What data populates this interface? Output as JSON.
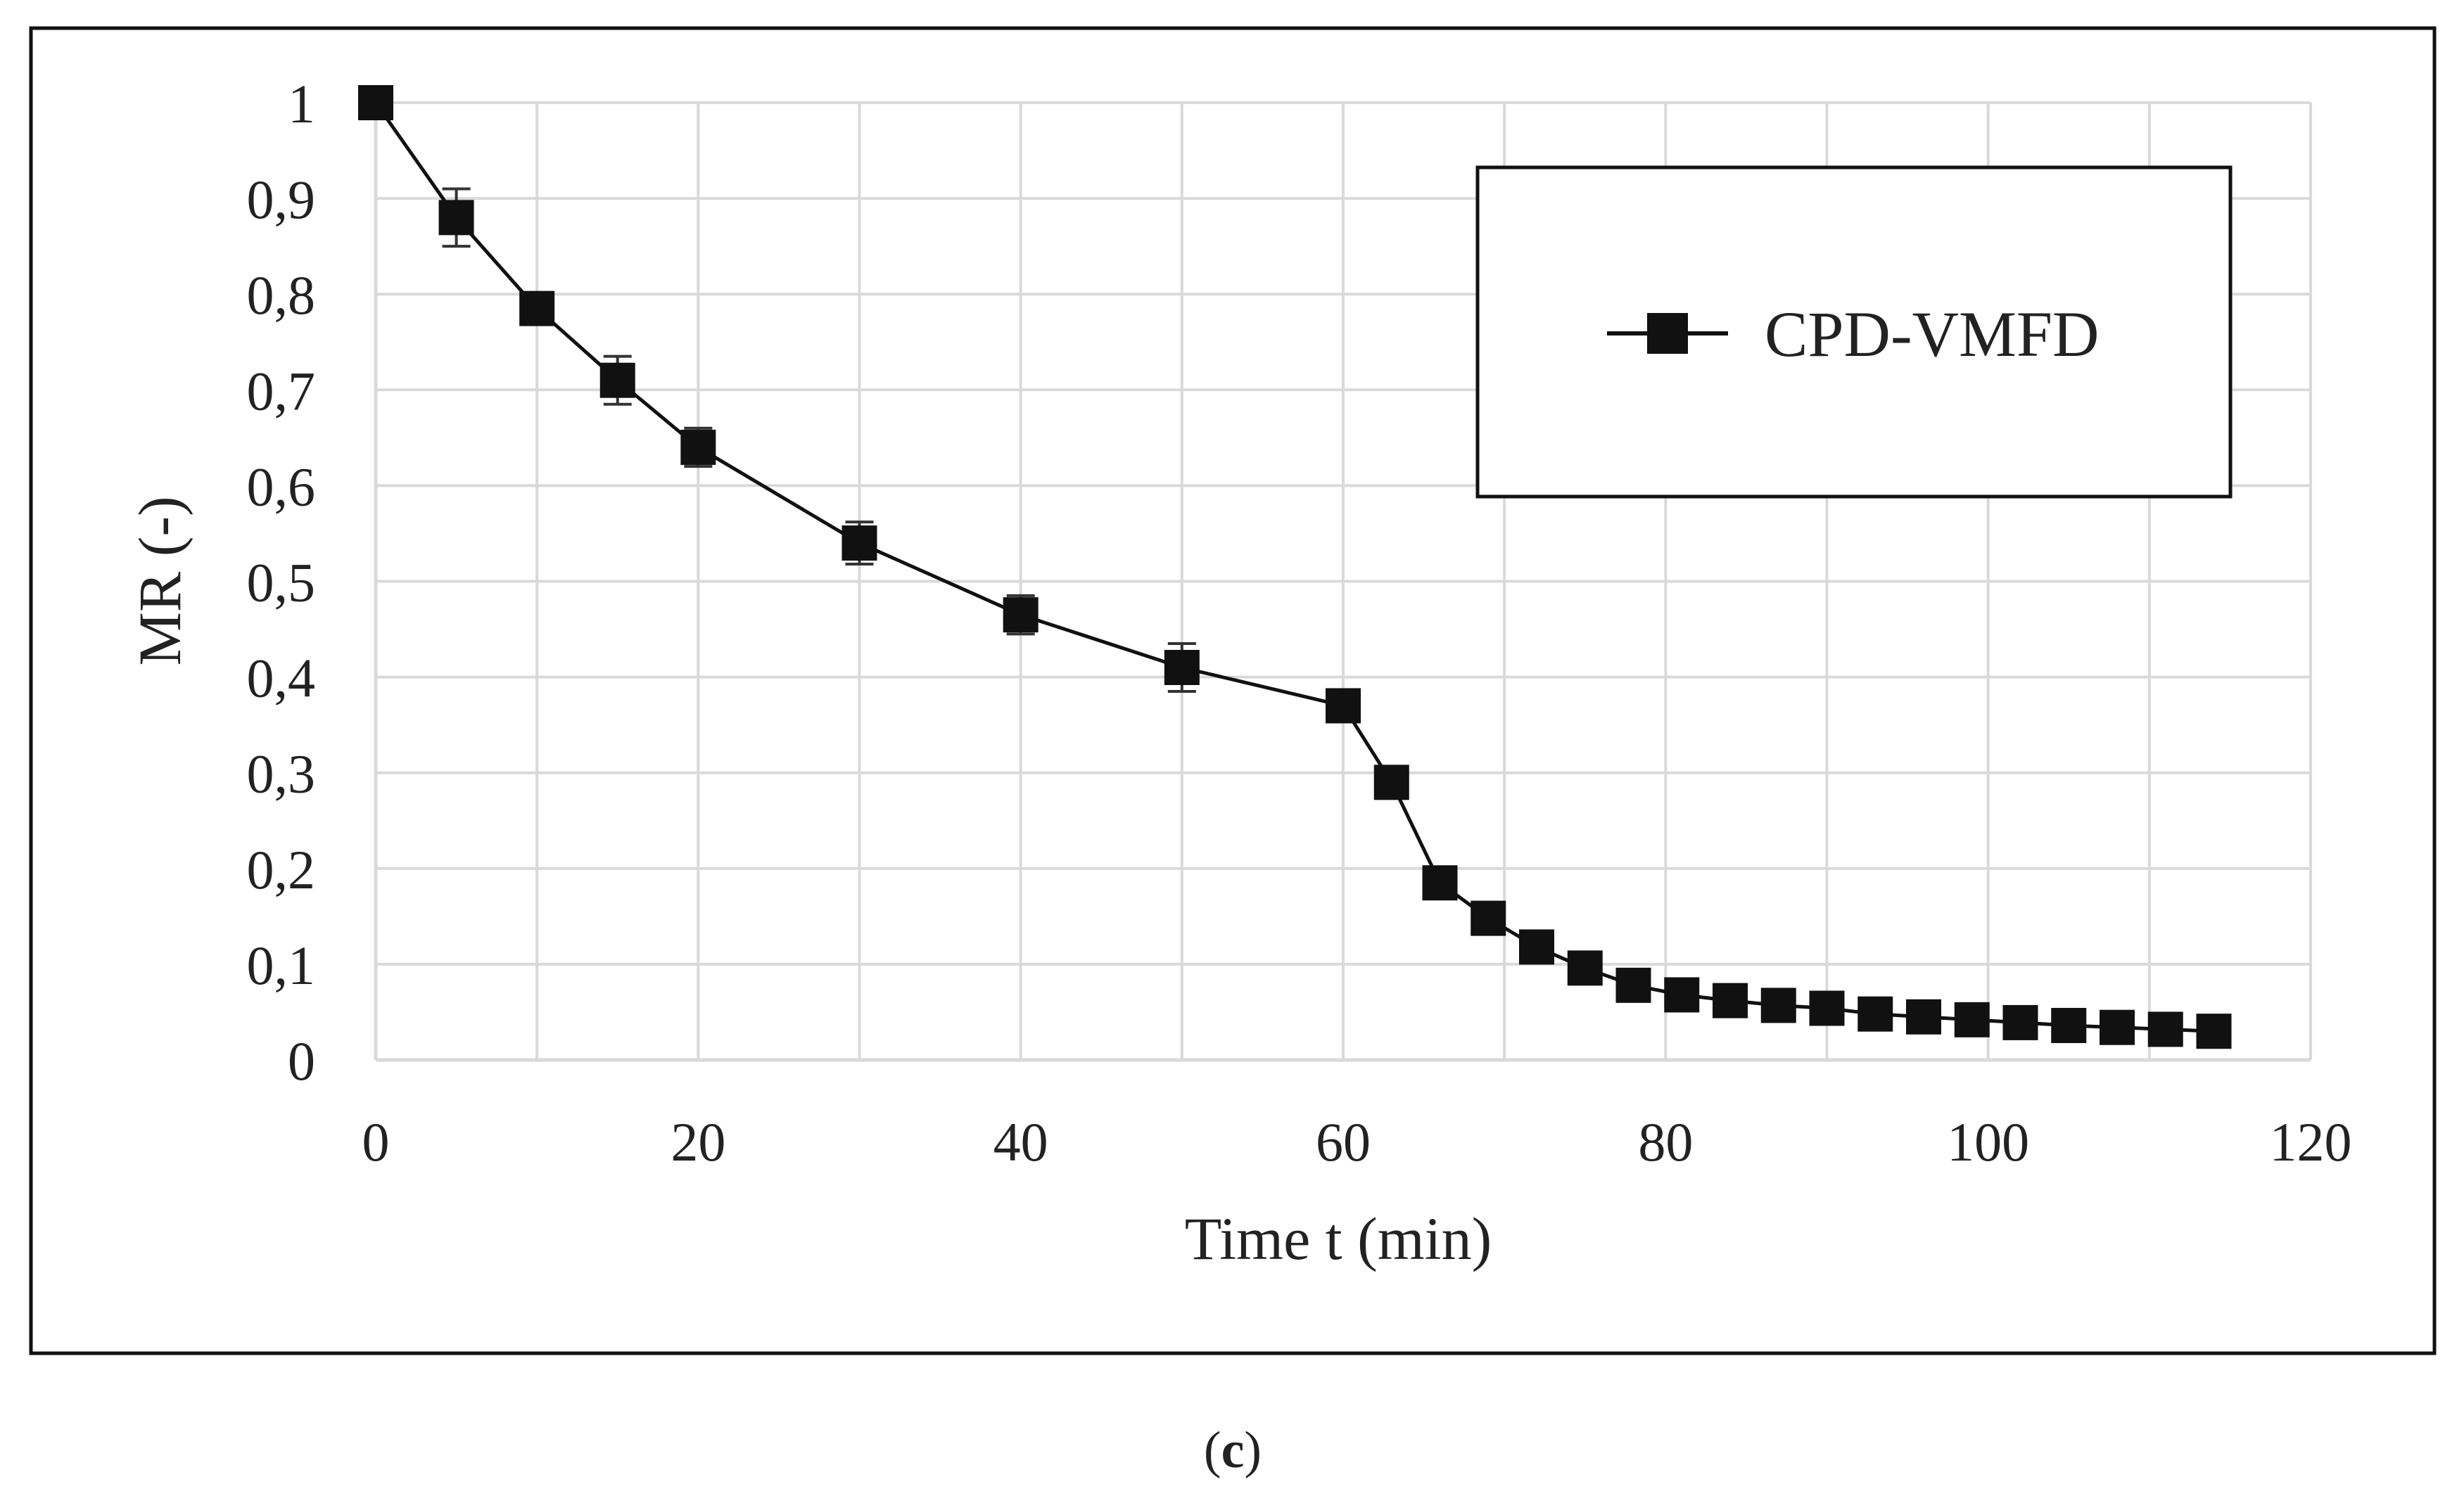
{
  "chart_data": {
    "type": "line",
    "xlabel": "Time t (min)",
    "ylabel": "MR (-)",
    "xlim": [
      0,
      120
    ],
    "ylim": [
      0,
      1
    ],
    "x_ticks": [
      0,
      20,
      40,
      60,
      80,
      100,
      120
    ],
    "y_ticks": [
      0,
      0.1,
      0.2,
      0.3,
      0.4,
      0.5,
      0.6,
      0.7,
      0.8,
      0.9,
      1
    ],
    "x_tick_labels": [
      "0",
      "20",
      "40",
      "60",
      "80",
      "100",
      "120"
    ],
    "y_tick_labels": [
      "0",
      "0,1",
      "0,2",
      "0,3",
      "0,4",
      "0,5",
      "0,6",
      "0,7",
      "0,8",
      "0,9",
      "1"
    ],
    "x_minor_gridlines": [
      10,
      30,
      50,
      70,
      90,
      110
    ],
    "grid": true,
    "legend_position": "top-right",
    "marker": "square",
    "series": [
      {
        "name": "CPD-VMFD",
        "x": [
          0,
          5,
          10,
          15,
          20,
          30,
          40,
          50,
          60,
          63,
          66,
          69,
          72,
          75,
          78,
          81,
          84,
          87,
          90,
          93,
          96,
          99,
          102,
          105,
          108,
          111,
          114
        ],
        "y": [
          1.0,
          0.88,
          0.785,
          0.71,
          0.64,
          0.54,
          0.465,
          0.41,
          0.37,
          0.29,
          0.185,
          0.148,
          0.118,
          0.096,
          0.078,
          0.068,
          0.062,
          0.057,
          0.054,
          0.048,
          0.045,
          0.042,
          0.039,
          0.036,
          0.034,
          0.032,
          0.03
        ],
        "error": [
          0,
          0.03,
          0.01,
          0.025,
          0.02,
          0.022,
          0.02,
          0.025,
          0.01,
          0.005,
          0.005,
          0.005,
          0.005,
          0.005,
          0.005,
          0.005,
          0.005,
          0.005,
          0.005,
          0.005,
          0.005,
          0.005,
          0.005,
          0.005,
          0.005,
          0.005,
          0.005
        ]
      }
    ]
  },
  "caption": {
    "open": "(",
    "letter": "c",
    "close": ")"
  }
}
